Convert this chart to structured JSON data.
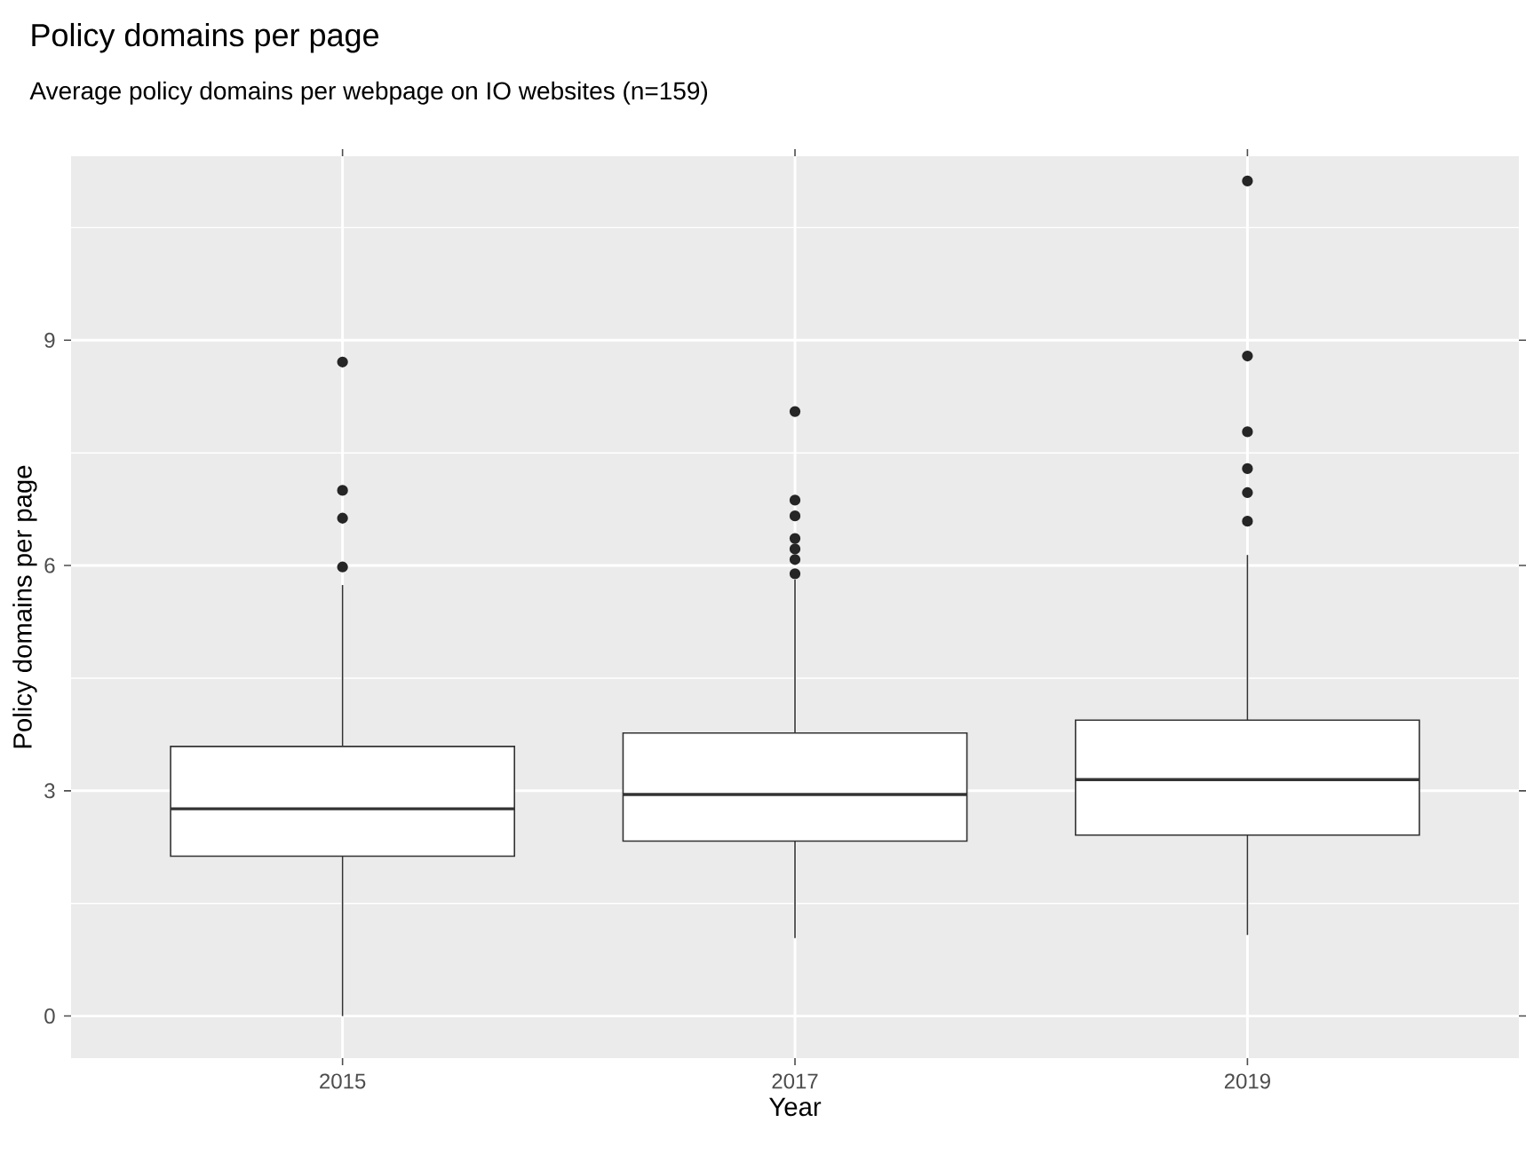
{
  "chart_data": {
    "type": "box",
    "title": "Policy domains per page",
    "subtitle": "Average policy domains per webpage on IO websites (n=159)",
    "xlabel": "Year",
    "ylabel": "Policy domains per page",
    "categories": [
      "2015",
      "2017",
      "2019"
    ],
    "boxes": [
      {
        "low": 0,
        "q1": 2.13,
        "median": 2.76,
        "q3": 3.59,
        "high": 5.74,
        "outliers": [
          8.71,
          7.0,
          6.63,
          5.98
        ]
      },
      {
        "low": 1.04,
        "q1": 2.33,
        "median": 2.95,
        "q3": 3.77,
        "high": 5.81,
        "outliers": [
          8.05,
          6.87,
          6.66,
          6.36,
          6.22,
          6.08,
          5.89
        ]
      },
      {
        "low": 1.08,
        "q1": 2.41,
        "median": 3.15,
        "q3": 3.94,
        "high": 6.14,
        "outliers": [
          11.12,
          8.79,
          7.78,
          7.29,
          6.97,
          6.59
        ]
      }
    ],
    "ylim": [
      -0.56,
      11.45
    ],
    "yticks": [
      0,
      3,
      6,
      9
    ],
    "grid": true
  }
}
